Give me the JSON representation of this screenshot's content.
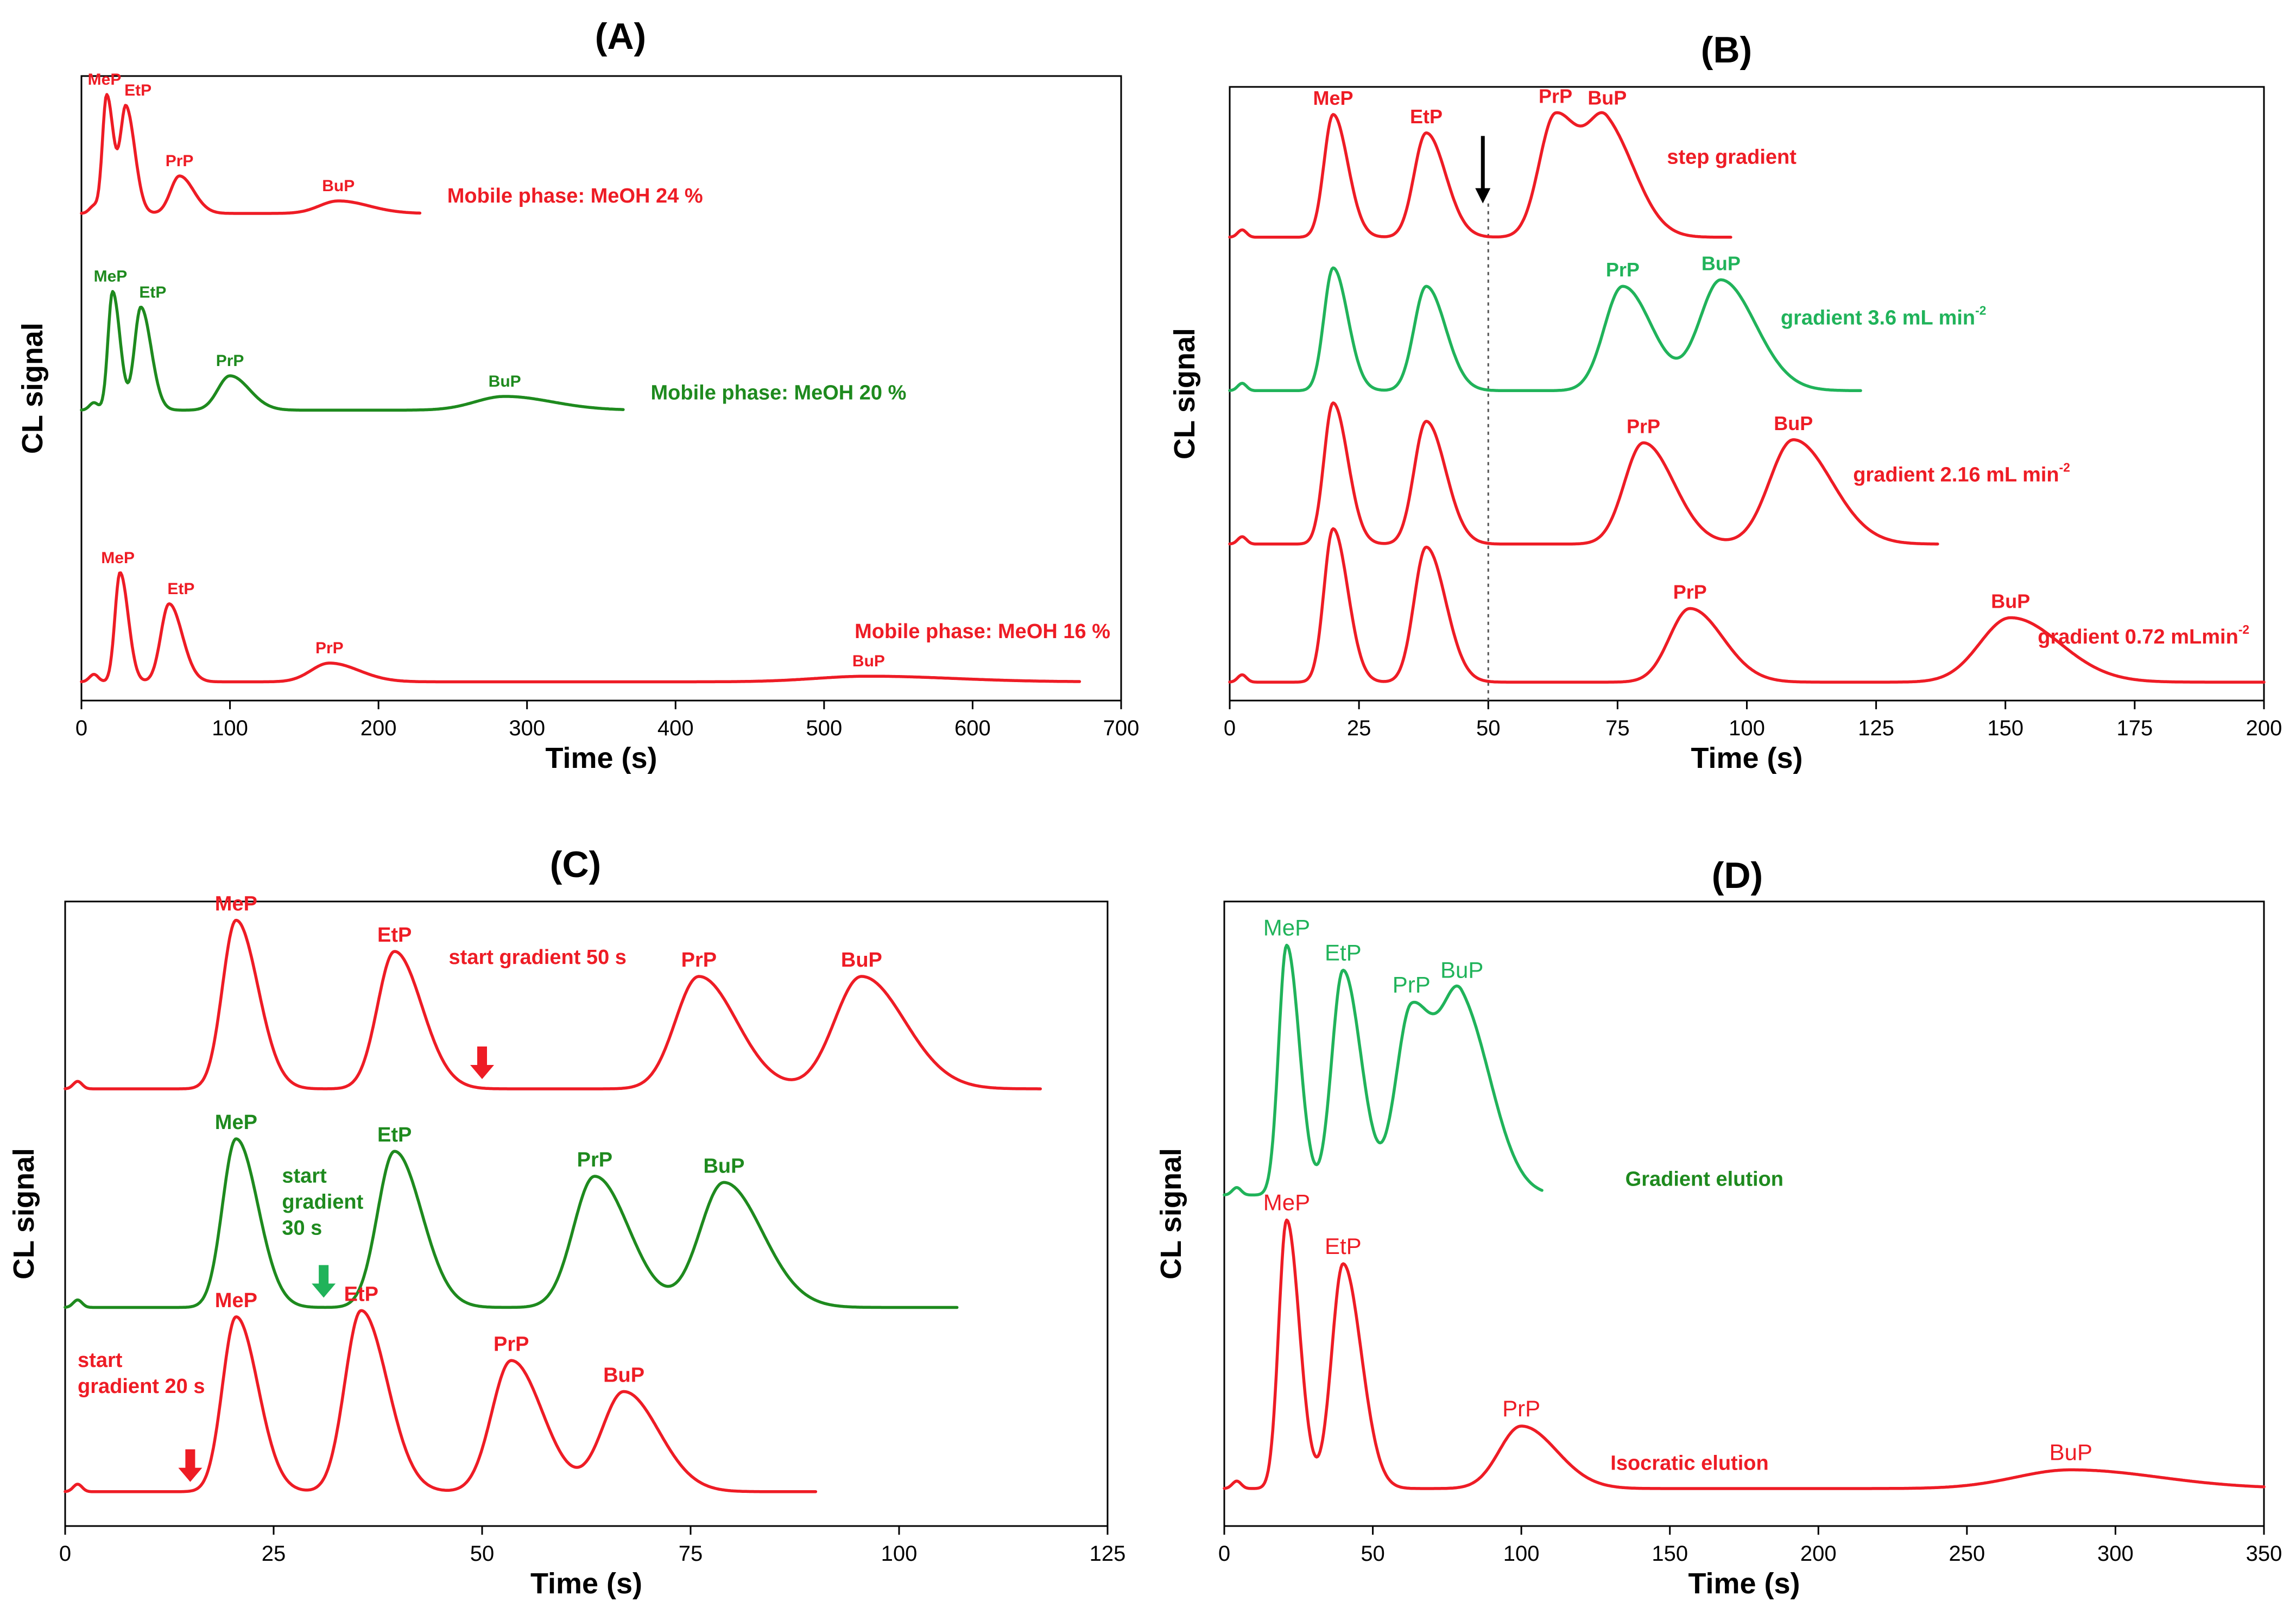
{
  "colors": {
    "red": "#ee1c25",
    "green": "#20b35a",
    "dark_green": "#1e8a1e"
  },
  "chart_data": [
    {
      "id": "A",
      "type": "line",
      "title": "(A)",
      "xlabel": "Time (s)",
      "ylabel": "CL signal",
      "xlim": [
        0,
        700
      ],
      "xticks": [
        0,
        100,
        200,
        300,
        400,
        500,
        600,
        700
      ],
      "series": [
        {
          "annotation": "Mobile phase: MeOH 24 %",
          "color": "#ee1c25",
          "xmax": 228,
          "baseline": 0.78,
          "peaks": [
            {
              "label": "MeP",
              "t": 17,
              "h": 0.19
            },
            {
              "label": "EtP",
              "t": 30,
              "h": 0.17
            },
            {
              "label": "PrP",
              "t": 66,
              "h": 0.06
            },
            {
              "label": "BuP",
              "t": 173,
              "h": 0.02
            }
          ]
        },
        {
          "annotation": "Mobile phase: MeOH 20 %",
          "color": "#1e8a1e",
          "xmax": 365,
          "baseline": 0.465,
          "peaks": [
            {
              "label": "MeP",
              "t": 21,
              "h": 0.19
            },
            {
              "label": "EtP",
              "t": 40,
              "h": 0.165
            },
            {
              "label": "PrP",
              "t": 100,
              "h": 0.055
            },
            {
              "label": "BuP",
              "t": 285,
              "h": 0.022
            }
          ]
        },
        {
          "annotation": "Mobile phase: MeOH 16 %",
          "color": "#ee1c25",
          "xmax": 672,
          "baseline": 0.03,
          "peaks": [
            {
              "label": "MeP",
              "t": 26,
              "h": 0.175
            },
            {
              "label": "EtP",
              "t": 59,
              "h": 0.125
            },
            {
              "label": "PrP",
              "t": 167,
              "h": 0.03
            },
            {
              "label": "BuP",
              "t": 530,
              "h": 0.009
            }
          ]
        }
      ]
    },
    {
      "id": "B",
      "type": "line",
      "title": "(B)",
      "xlabel": "Time (s)",
      "ylabel": "CL signal",
      "xlim": [
        0,
        200
      ],
      "xticks": [
        0,
        25,
        50,
        75,
        100,
        125,
        150,
        175,
        200
      ],
      "marker_line_x": 50,
      "series": [
        {
          "annotation": "step gradient",
          "color": "#ee1c25",
          "xmax": 97,
          "baseline": 0.755,
          "peaks": [
            {
              "label": "MeP",
              "t": 20,
              "h": 0.2
            },
            {
              "label": "EtP",
              "t": 38,
              "h": 0.17
            },
            {
              "label": "PrP",
              "t": 63,
              "h": 0.2
            },
            {
              "label": "BuP",
              "t": 73,
              "h": 0.17
            }
          ]
        },
        {
          "annotation": "gradient 3.6 mL min",
          "annotation_sup": "-2",
          "color": "#20b35a",
          "xmax": 122,
          "baseline": 0.505,
          "peaks": [
            {
              "label": "",
              "t": 20,
              "h": 0.2
            },
            {
              "label": "",
              "t": 38,
              "h": 0.17
            },
            {
              "label": "PrP",
              "t": 76,
              "h": 0.17
            },
            {
              "label": "BuP",
              "t": 95,
              "h": 0.18
            }
          ]
        },
        {
          "annotation": "gradient 2.16 mL min",
          "annotation_sup": "-2",
          "color": "#ee1c25",
          "xmax": 137,
          "baseline": 0.255,
          "peaks": [
            {
              "label": "",
              "t": 20,
              "h": 0.23
            },
            {
              "label": "",
              "t": 38,
              "h": 0.2
            },
            {
              "label": "PrP",
              "t": 80,
              "h": 0.165
            },
            {
              "label": "BuP",
              "t": 109,
              "h": 0.17
            }
          ]
        },
        {
          "annotation": "gradient 0.72 mLmin",
          "annotation_sup": "-2",
          "color": "#ee1c25",
          "xmax": 200,
          "baseline": 0.03,
          "peaks": [
            {
              "label": "",
              "t": 20,
              "h": 0.25
            },
            {
              "label": "",
              "t": 38,
              "h": 0.22
            },
            {
              "label": "PrP",
              "t": 89,
              "h": 0.12
            },
            {
              "label": "BuP",
              "t": 151,
              "h": 0.105
            }
          ]
        }
      ]
    },
    {
      "id": "C",
      "type": "line",
      "title": "(C)",
      "xlabel": "Time (s)",
      "ylabel": "CL signal",
      "xlim": [
        0,
        125
      ],
      "xticks": [
        0,
        25,
        50,
        75,
        100,
        125
      ],
      "series": [
        {
          "color": "#ee1c25",
          "xmax": 117,
          "baseline": 0.7,
          "annotation_lines": [
            "start gradient 50 s"
          ],
          "arrow_t": 50,
          "peaks": [
            {
              "label": "MeP",
              "t": 20.5,
              "h": 0.27
            },
            {
              "label": "EtP",
              "t": 39.5,
              "h": 0.22
            },
            {
              "label": "PrP",
              "t": 76,
              "h": 0.18
            },
            {
              "label": "BuP",
              "t": 95.5,
              "h": 0.18
            }
          ]
        },
        {
          "color": "#1e8a1e",
          "xmax": 107,
          "baseline": 0.35,
          "annotation_lines": [
            "start",
            "gradient",
            "30 s"
          ],
          "arrow_t": 31,
          "arrow_color": "#20b35a",
          "peaks": [
            {
              "label": "MeP",
              "t": 20.5,
              "h": 0.27
            },
            {
              "label": "EtP",
              "t": 39.5,
              "h": 0.25
            },
            {
              "label": "PrP",
              "t": 63.5,
              "h": 0.21
            },
            {
              "label": "BuP",
              "t": 79,
              "h": 0.2
            }
          ]
        },
        {
          "color": "#ee1c25",
          "xmax": 90,
          "baseline": 0.055,
          "annotation_lines": [
            "start",
            "gradient 20 s"
          ],
          "arrow_t": 15,
          "peaks": [
            {
              "label": "MeP",
              "t": 20.5,
              "h": 0.28
            },
            {
              "label": "EtP",
              "t": 35.5,
              "h": 0.29
            },
            {
              "label": "PrP",
              "t": 53.5,
              "h": 0.21
            },
            {
              "label": "BuP",
              "t": 67,
              "h": 0.16
            }
          ]
        }
      ]
    },
    {
      "id": "D",
      "type": "line",
      "title": "(D)",
      "xlabel": "Time (s)",
      "ylabel": "CL signal",
      "xlim": [
        0,
        350
      ],
      "xticks": [
        0,
        50,
        100,
        150,
        200,
        250,
        300,
        350
      ],
      "series": [
        {
          "annotation": "Gradient elution",
          "color": "#20b35a",
          "annotation_color": "#1e8a1e",
          "xmax": 107,
          "baseline": 0.53,
          "peaks": [
            {
              "label": "MeP",
              "t": 21,
              "h": 0.4
            },
            {
              "label": "EtP",
              "t": 40,
              "h": 0.36
            },
            {
              "label": "PrP",
              "t": 63,
              "h": 0.3
            },
            {
              "label": "BuP",
              "t": 80,
              "h": 0.29
            }
          ]
        },
        {
          "annotation": "Isocratic elution",
          "color": "#ee1c25",
          "xmax": 350,
          "baseline": 0.06,
          "peaks": [
            {
              "label": "MeP",
              "t": 21,
              "h": 0.43
            },
            {
              "label": "EtP",
              "t": 40,
              "h": 0.36
            },
            {
              "label": "PrP",
              "t": 100,
              "h": 0.1
            },
            {
              "label": "BuP",
              "t": 285,
              "h": 0.03
            }
          ]
        }
      ]
    }
  ]
}
